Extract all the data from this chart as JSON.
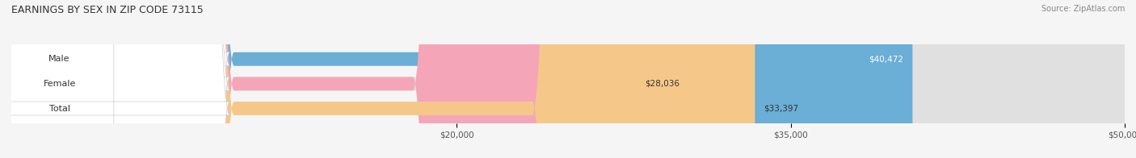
{
  "title": "EARNINGS BY SEX IN ZIP CODE 73115",
  "source_text": "Source: ZipAtlas.com",
  "categories": [
    "Male",
    "Female",
    "Total"
  ],
  "values": [
    40472,
    28036,
    33397
  ],
  "bar_colors": [
    "#6baed6",
    "#f4a6b8",
    "#f5c88a"
  ],
  "xmin": 0,
  "xmax": 50000,
  "xticks": [
    20000,
    35000,
    50000
  ],
  "xtick_labels": [
    "$20,000",
    "$35,000",
    "$50,000"
  ],
  "value_labels": [
    "$40,472",
    "$28,036",
    "$33,397"
  ],
  "bar_height": 0.55,
  "figsize": [
    14.06,
    1.96
  ],
  "dpi": 100,
  "title_fontsize": 9,
  "label_fontsize": 8,
  "value_fontsize": 7.5,
  "tick_fontsize": 7.5,
  "source_fontsize": 7,
  "background_color": "#f5f5f5"
}
